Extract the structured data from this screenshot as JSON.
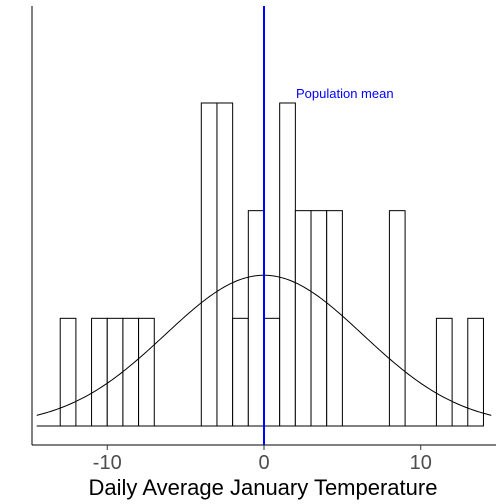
{
  "chart_data": {
    "type": "bar",
    "title": "",
    "xlabel": "Daily Average January Temperature",
    "ylabel": "",
    "xlim": [
      -14.8,
      14.8
    ],
    "ylim": [
      0,
      3.15
    ],
    "x_ticks": [
      {
        "value": -10,
        "label": "-10"
      },
      {
        "value": 0,
        "label": "0"
      },
      {
        "value": 10,
        "label": "10"
      }
    ],
    "grid": false,
    "bin_width": 1,
    "bins": [
      {
        "x0": -14,
        "x1": -13,
        "count": 0
      },
      {
        "x0": -13,
        "x1": -12,
        "count": 1
      },
      {
        "x0": -12,
        "x1": -11,
        "count": 0
      },
      {
        "x0": -11,
        "x1": -10,
        "count": 1
      },
      {
        "x0": -10,
        "x1": -9,
        "count": 1
      },
      {
        "x0": -9,
        "x1": -8,
        "count": 1
      },
      {
        "x0": -8,
        "x1": -7,
        "count": 1
      },
      {
        "x0": -7,
        "x1": -6,
        "count": 0
      },
      {
        "x0": -6,
        "x1": -5,
        "count": 0
      },
      {
        "x0": -5,
        "x1": -4,
        "count": 0
      },
      {
        "x0": -4,
        "x1": -3,
        "count": 3
      },
      {
        "x0": -3,
        "x1": -2,
        "count": 3
      },
      {
        "x0": -2,
        "x1": -1,
        "count": 1
      },
      {
        "x0": -1,
        "x1": 0,
        "count": 2
      },
      {
        "x0": 0,
        "x1": 1,
        "count": 1
      },
      {
        "x0": 1,
        "x1": 2,
        "count": 3
      },
      {
        "x0": 2,
        "x1": 3,
        "count": 2
      },
      {
        "x0": 3,
        "x1": 4,
        "count": 2
      },
      {
        "x0": 4,
        "x1": 5,
        "count": 2
      },
      {
        "x0": 5,
        "x1": 6,
        "count": 0
      },
      {
        "x0": 6,
        "x1": 7,
        "count": 0
      },
      {
        "x0": 7,
        "x1": 8,
        "count": 0
      },
      {
        "x0": 8,
        "x1": 9,
        "count": 2
      },
      {
        "x0": 9,
        "x1": 10,
        "count": 0
      },
      {
        "x0": 10,
        "x1": 11,
        "count": 0
      },
      {
        "x0": 11,
        "x1": 12,
        "count": 1
      },
      {
        "x0": 12,
        "x1": 13,
        "count": 0
      },
      {
        "x0": 13,
        "x1": 14,
        "count": 1
      }
    ],
    "normal_curve": {
      "mean": 0,
      "sd": 6.3,
      "peak": 1.4
    },
    "mean_line": {
      "x": 0,
      "color": "#0000ff",
      "label": "Population mean"
    },
    "colors": {
      "bar_fill": "#ffffff",
      "bar_stroke": "#000000",
      "curve": "#000000",
      "axis": "#000000"
    }
  }
}
